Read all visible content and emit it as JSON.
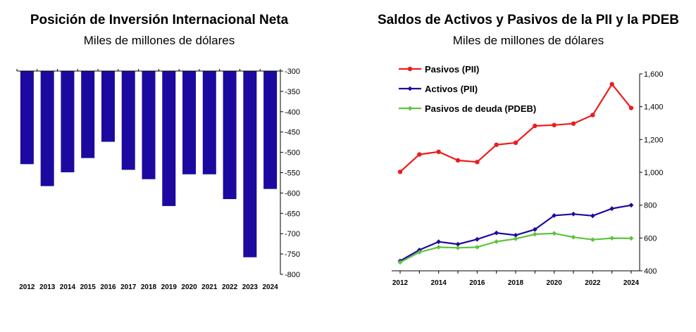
{
  "chart_data": [
    {
      "type": "bar",
      "title": "Posición de Inversión Internacional Neta",
      "subtitle": "Miles de millones de dólares",
      "categories": [
        "2012",
        "2013",
        "2014",
        "2015",
        "2016",
        "2017",
        "2018",
        "2019",
        "2020",
        "2021",
        "2022",
        "2023",
        "2024"
      ],
      "values": [
        -529,
        -583,
        -549,
        -514,
        -474,
        -543,
        -566,
        -632,
        -554,
        -554,
        -615,
        -758,
        -590
      ],
      "ylim": [
        -800,
        -300
      ],
      "yticks": [
        -300,
        -350,
        -400,
        -450,
        -500,
        -550,
        -600,
        -650,
        -700,
        -750,
        -800
      ],
      "y_axis_side": "right",
      "bars_hang_from_top": true,
      "color": "#1c0aa0"
    },
    {
      "type": "line",
      "title": "Saldos de Activos y Pasivos de la PII y la PDEB",
      "subtitle": "Miles de millones de dólares",
      "x": [
        2012,
        2013,
        2014,
        2015,
        2016,
        2017,
        2018,
        2019,
        2020,
        2021,
        2022,
        2023,
        2024
      ],
      "xticks": [
        "2012",
        "2014",
        "2016",
        "2018",
        "2020",
        "2022",
        "2024"
      ],
      "ylim": [
        400,
        1600
      ],
      "yticks": [
        "400",
        "600",
        "800",
        "1,000",
        "1,200",
        "1,400",
        "1,600"
      ],
      "ytick_values": [
        400,
        600,
        800,
        1000,
        1200,
        1400,
        1600
      ],
      "y_axis_side": "right",
      "legend_position": "top-left",
      "series": [
        {
          "name": "Pasivos (PII)",
          "color": "#ee1c1c",
          "values": [
            1003,
            1109,
            1125,
            1073,
            1063,
            1168,
            1180,
            1283,
            1288,
            1297,
            1349,
            1537,
            1392
          ]
        },
        {
          "name": "Activos (PII)",
          "color": "#1c0aa0",
          "values": [
            460,
            527,
            577,
            562,
            592,
            631,
            617,
            652,
            737,
            746,
            735,
            779,
            800
          ]
        },
        {
          "name": "Pasivos de deuda (PDEB)",
          "color": "#5ec43c",
          "values": [
            452,
            513,
            544,
            540,
            544,
            578,
            595,
            623,
            628,
            605,
            590,
            599,
            598
          ]
        }
      ]
    }
  ]
}
